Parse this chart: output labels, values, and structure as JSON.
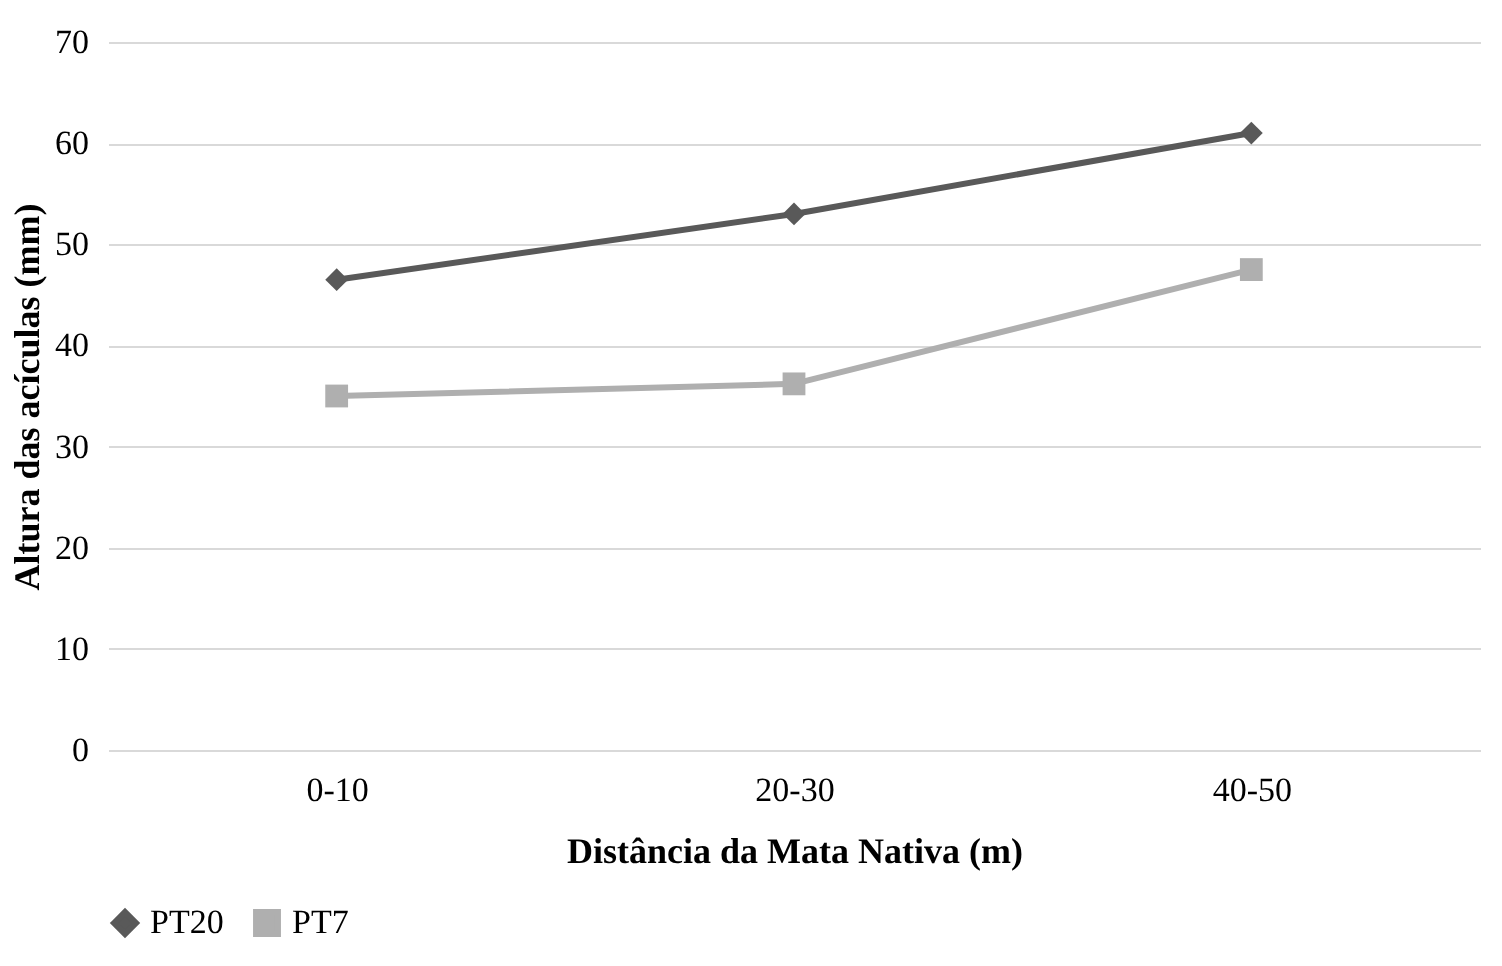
{
  "chart_data": {
    "type": "line",
    "xlabel": "Distância da Mata Nativa (m)",
    "ylabel": "Altura das acículas (mm)",
    "categories": [
      "0-10",
      "20-30",
      "40-50"
    ],
    "series": [
      {
        "name": "PT20",
        "color": "#595959",
        "marker": "diamond",
        "values": [
          46.5,
          53,
          61
        ]
      },
      {
        "name": "PT7",
        "color": "#afafaf",
        "marker": "square",
        "values": [
          35,
          36.2,
          47.5
        ]
      }
    ],
    "ylim": [
      0,
      70
    ],
    "yticks": [
      0,
      10,
      20,
      30,
      40,
      50,
      60,
      70
    ],
    "grid": "y",
    "legend": "bottom",
    "line_style": "solid"
  }
}
